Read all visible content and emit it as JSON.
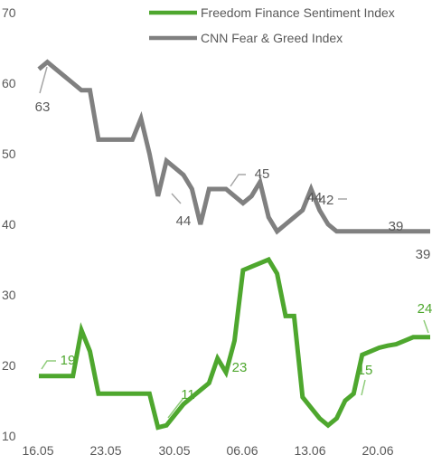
{
  "chart_data": {
    "type": "line",
    "title": "",
    "xlabel": "",
    "ylabel": "",
    "ylim": [
      10,
      70
    ],
    "yticks": [
      "10",
      "20",
      "30",
      "40",
      "50",
      "60",
      "70"
    ],
    "xtick_labels": [
      "16.05",
      "23.05",
      "30.05",
      "06.06",
      "13.06",
      "20.06"
    ],
    "grid": false,
    "legend_position": "top",
    "series": [
      {
        "name": "Freedom Finance Sentiment Index",
        "color": "#4ea72e",
        "x": [
          0,
          0.5,
          1,
          1.5,
          2,
          2.5,
          3,
          3.5,
          4,
          4.5,
          5,
          5.5,
          6,
          6.5,
          7,
          7.5,
          8,
          8.5,
          9,
          9.5,
          10,
          10.5,
          11,
          11.5,
          12,
          12.5,
          13,
          13.5,
          14,
          14.5,
          15,
          15.5,
          16,
          16.5,
          17,
          17.5,
          18,
          18.5,
          19,
          19.5,
          20,
          20.5,
          21,
          21.5,
          22,
          22.5,
          23
        ],
        "y": [
          18.5,
          18.5,
          18.5,
          18.5,
          18.5,
          25,
          22,
          16,
          16,
          16,
          16,
          16,
          16,
          16,
          11.2,
          11.5,
          13,
          14.5,
          15.5,
          16.5,
          17.5,
          21,
          19,
          23.5,
          33.5,
          34,
          34.5,
          35,
          33,
          27,
          27,
          15.5,
          14,
          12.5,
          11.5,
          12.5,
          15,
          16,
          21.5,
          22,
          22.5,
          22.8,
          23,
          23.5,
          24,
          24,
          24
        ]
      },
      {
        "name": "CNN Fear & Greed Index",
        "color": "#808080",
        "x": [
          0,
          0.5,
          1,
          1.5,
          2,
          2.5,
          3,
          3.5,
          4,
          4.5,
          5,
          5.5,
          6,
          6.5,
          7,
          7.5,
          8,
          8.5,
          9,
          9.5,
          10,
          10.5,
          11,
          11.5,
          12,
          12.5,
          13,
          13.5,
          14,
          14.5,
          15,
          15.5,
          16,
          16.5,
          17,
          17.5,
          18,
          18.5,
          19,
          19.5,
          20,
          20.5,
          21,
          21.5,
          22,
          22.5,
          23
        ],
        "y": [
          62,
          63,
          62,
          61,
          60,
          59,
          59,
          52,
          52,
          52,
          52,
          52,
          55,
          50,
          44,
          49,
          48,
          47,
          45,
          40,
          45,
          45,
          45,
          44,
          43,
          44,
          46,
          41,
          39,
          40,
          41,
          42,
          45,
          42,
          40,
          39,
          39,
          39,
          39,
          39,
          39,
          39,
          39,
          39,
          39,
          39,
          39
        ]
      }
    ],
    "annotations": [
      {
        "series": 1,
        "text": "63"
      },
      {
        "series": 1,
        "text": "44"
      },
      {
        "series": 1,
        "text": "45"
      },
      {
        "series": 1,
        "text": "44"
      },
      {
        "series": 1,
        "text": "42"
      },
      {
        "series": 1,
        "text": "39"
      },
      {
        "series": 1,
        "text": "39"
      },
      {
        "series": 0,
        "text": "19"
      },
      {
        "series": 0,
        "text": "11"
      },
      {
        "series": 0,
        "text": "23"
      },
      {
        "series": 0,
        "text": "15"
      },
      {
        "series": 0,
        "text": "24"
      }
    ]
  }
}
